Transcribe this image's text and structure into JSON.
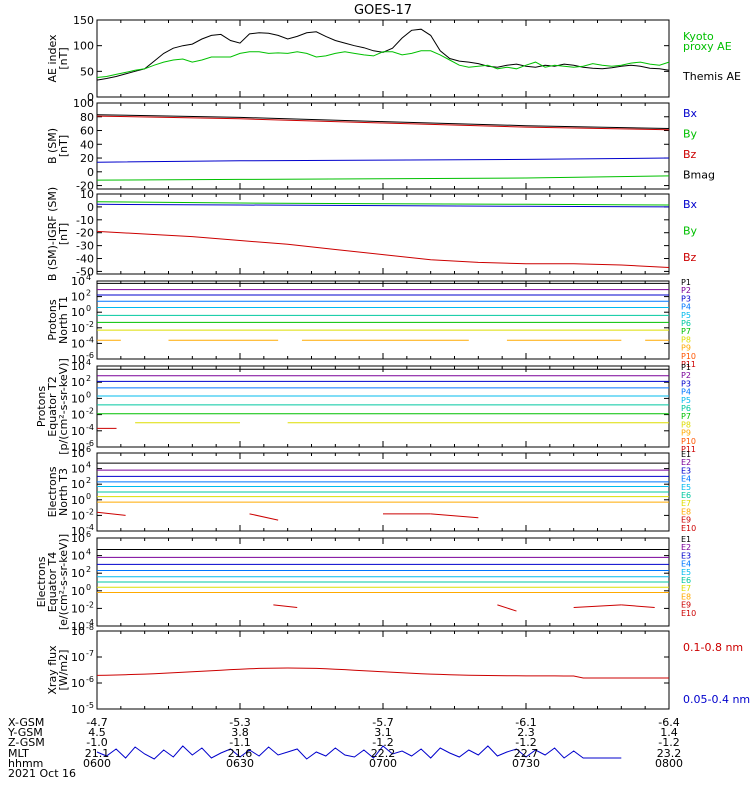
{
  "title": "GOES-17",
  "chart_data": [
    {
      "type": "line",
      "panel": "ae",
      "ylabel": [
        "AE index",
        "[nT]"
      ],
      "ylim": [
        0,
        150
      ],
      "yticks": [
        "0",
        "50",
        "100",
        "150"
      ],
      "legend": [
        {
          "text": "Kyoto",
          "color": "#00c000"
        },
        {
          "text": "proxy AE",
          "color": "#00c000"
        },
        {
          "text": "Themis AE",
          "color": "#000000"
        }
      ],
      "series": [
        {
          "name": "Themis AE",
          "color": "#000000",
          "x": [
            0,
            2,
            4,
            6,
            8,
            10,
            12,
            14,
            16,
            18,
            20,
            22,
            24,
            26,
            28,
            30,
            32,
            34,
            36,
            38,
            40,
            42,
            44,
            46,
            48,
            50,
            52,
            54,
            56,
            58,
            60,
            62,
            64,
            66,
            68,
            70,
            72,
            74,
            76,
            78,
            80,
            82,
            84,
            86,
            88,
            90,
            92,
            94,
            96,
            98,
            100,
            102,
            104,
            106,
            108,
            110,
            112,
            114,
            116,
            118,
            120
          ],
          "y": [
            33,
            36,
            40,
            45,
            50,
            55,
            70,
            85,
            95,
            100,
            103,
            113,
            120,
            122,
            110,
            105,
            123,
            125,
            124,
            120,
            113,
            118,
            125,
            127,
            118,
            110,
            105,
            100,
            96,
            90,
            87,
            95,
            115,
            130,
            132,
            120,
            90,
            75,
            70,
            68,
            65,
            60,
            58,
            62,
            64,
            60,
            58,
            62,
            60,
            64,
            62,
            58,
            56,
            55,
            57,
            60,
            62,
            60,
            56,
            55,
            52
          ]
        },
        {
          "name": "Kyoto proxy AE",
          "color": "#00c000",
          "x": [
            0,
            2,
            4,
            6,
            8,
            10,
            12,
            14,
            16,
            18,
            20,
            22,
            24,
            26,
            28,
            30,
            32,
            34,
            36,
            38,
            40,
            42,
            44,
            46,
            48,
            50,
            52,
            54,
            56,
            58,
            60,
            62,
            64,
            66,
            68,
            70,
            72,
            74,
            76,
            78,
            80,
            82,
            84,
            86,
            88,
            90,
            92,
            94,
            96,
            98,
            100,
            102,
            104,
            106,
            108,
            110,
            112,
            114,
            116,
            118,
            120
          ],
          "y": [
            38,
            40,
            44,
            48,
            52,
            55,
            62,
            68,
            72,
            74,
            68,
            72,
            78,
            78,
            78,
            85,
            88,
            88,
            85,
            86,
            85,
            88,
            85,
            78,
            80,
            85,
            88,
            85,
            82,
            80,
            88,
            88,
            82,
            85,
            90,
            90,
            82,
            72,
            62,
            58,
            60,
            62,
            55,
            58,
            55,
            62,
            68,
            58,
            62,
            60,
            58,
            60,
            65,
            62,
            60,
            62,
            66,
            68,
            64,
            62,
            68
          ]
        }
      ]
    },
    {
      "type": "line",
      "panel": "bsm",
      "ylabel": [
        "B (SM)",
        "[nT]"
      ],
      "ylim": [
        -25,
        100
      ],
      "yticks": [
        "-20",
        "0",
        "20",
        "40",
        "60",
        "80",
        "100"
      ],
      "legend": [
        {
          "text": "Bx",
          "color": "#0000cc"
        },
        {
          "text": "By",
          "color": "#00c000"
        },
        {
          "text": "Bz",
          "color": "#cc0000"
        },
        {
          "text": "Bmag",
          "color": "#000000"
        }
      ],
      "series": [
        {
          "name": "Bx",
          "color": "#0000cc",
          "x": [
            0,
            30,
            60,
            90,
            120
          ],
          "y": [
            14,
            16,
            17,
            18,
            20
          ]
        },
        {
          "name": "By",
          "color": "#00c000",
          "x": [
            0,
            30,
            60,
            90,
            120
          ],
          "y": [
            -12,
            -11,
            -10,
            -9,
            -6
          ]
        },
        {
          "name": "Bz",
          "color": "#cc0000",
          "x": [
            0,
            30,
            60,
            90,
            120
          ],
          "y": [
            81,
            77,
            71,
            65,
            61
          ]
        },
        {
          "name": "Bmag",
          "color": "#000000",
          "x": [
            0,
            30,
            60,
            90,
            120
          ],
          "y": [
            83,
            79,
            73,
            67,
            63
          ]
        }
      ]
    },
    {
      "type": "line",
      "panel": "bigrf",
      "ylabel": [
        "B (SM)-IGRF (SM)",
        "[nT]"
      ],
      "ylim": [
        -52,
        10
      ],
      "yticks": [
        "-50",
        "-40",
        "-30",
        "-20",
        "-10",
        "0",
        "10"
      ],
      "legend": [
        {
          "text": "Bx",
          "color": "#0000cc"
        },
        {
          "text": "By",
          "color": "#00c000"
        },
        {
          "text": "Bz",
          "color": "#cc0000"
        }
      ],
      "series": [
        {
          "name": "Bx",
          "color": "#0000cc",
          "x": [
            0,
            30,
            60,
            90,
            120
          ],
          "y": [
            2,
            1.5,
            1,
            0.5,
            0
          ]
        },
        {
          "name": "By",
          "color": "#00c000",
          "x": [
            0,
            30,
            60,
            90,
            120
          ],
          "y": [
            4,
            3,
            2.5,
            2,
            1.5
          ]
        },
        {
          "name": "Bz",
          "color": "#cc0000",
          "x": [
            0,
            10,
            20,
            30,
            40,
            50,
            60,
            70,
            80,
            90,
            100,
            110,
            120
          ],
          "y": [
            -19,
            -21,
            -23,
            -26,
            -29,
            -33,
            -37,
            -41,
            -43,
            -44,
            -44,
            -45,
            -47
          ]
        }
      ]
    },
    {
      "type": "line",
      "panel": "pn",
      "ylabel": [
        "Protons",
        "North T1"
      ],
      "log": true,
      "ylim": [
        -6,
        4
      ],
      "yticks": [
        {
          "b": "10",
          "e": "4"
        },
        {
          "b": "10",
          "e": "2"
        },
        {
          "b": "10",
          "e": "0"
        },
        {
          "b": "10",
          "e": "-2"
        },
        {
          "b": "10",
          "e": "-4"
        },
        {
          "b": "10",
          "e": "-6"
        }
      ],
      "legend": [
        "P1",
        "P2",
        "P3",
        "P4",
        "P5",
        "P6",
        "P7",
        "P8",
        "P9",
        "P10",
        "P11"
      ],
      "levels": [
        3.7,
        2.9,
        2.2,
        1.4,
        0.6,
        -0.4,
        -1.3,
        -2.3,
        -3.6
      ],
      "gaps": {
        "8": [
          [
            5,
            15
          ],
          [
            38,
            43
          ],
          [
            78,
            86
          ],
          [
            110,
            115
          ]
        ]
      }
    },
    {
      "type": "line",
      "panel": "pe",
      "ylabel": [
        "Protons",
        "Equator T2",
        "[p/(cm²-s-sr-keV)]"
      ],
      "log": true,
      "ylim": [
        -6,
        4
      ],
      "yticks": [
        {
          "b": "10",
          "e": "4"
        },
        {
          "b": "10",
          "e": "2"
        },
        {
          "b": "10",
          "e": "0"
        },
        {
          "b": "10",
          "e": "-2"
        },
        {
          "b": "10",
          "e": "-4"
        },
        {
          "b": "10",
          "e": "-6"
        }
      ],
      "legend": [
        "P1",
        "P2",
        "P3",
        "P4",
        "P5",
        "P6",
        "P7",
        "P8",
        "P9",
        "P10",
        "P11"
      ],
      "levels": [
        3.6,
        2.8,
        2.1,
        1.3,
        0.3,
        -0.8,
        -1.9,
        -3.0,
        -3.8
      ],
      "gaps": {
        "7": [
          [
            0,
            8
          ],
          [
            30,
            40
          ]
        ],
        "8": [
          [
            0,
            120
          ]
        ]
      },
      "extra": {
        "level": -3.7,
        "x0": 0,
        "x1": 2
      }
    },
    {
      "type": "line",
      "panel": "en",
      "ylabel": [
        "Electrons",
        "North T3"
      ],
      "log": true,
      "ylim": [
        -4,
        6
      ],
      "yticks": [
        {
          "b": "10",
          "e": "6"
        },
        {
          "b": "10",
          "e": "4"
        },
        {
          "b": "10",
          "e": "2"
        },
        {
          "b": "10",
          "e": "0"
        },
        {
          "b": "10",
          "e": "-2"
        },
        {
          "b": "10",
          "e": "-4"
        }
      ],
      "legend": [
        "E1",
        "E2",
        "E3",
        "E4",
        "E5",
        "E6",
        "E7",
        "E8",
        "E9",
        "E10"
      ],
      "levels": [
        4.7,
        3.8,
        3.0,
        2.3,
        1.7,
        1.0,
        0.4,
        -0.3
      ],
      "segments": [
        [
          0,
          -1.6,
          6,
          -2.0
        ],
        [
          32,
          -1.8,
          38,
          -2.6
        ],
        [
          60,
          -1.8,
          70,
          -1.8
        ],
        [
          70,
          -1.8,
          80,
          -2.3
        ]
      ]
    },
    {
      "type": "line",
      "panel": "ee",
      "ylabel": [
        "Electrons",
        "Equator T4",
        "[e/(cm²-s-sr-keV)]"
      ],
      "log": true,
      "ylim": [
        -4,
        6
      ],
      "yticks": [
        {
          "b": "10",
          "e": "6"
        },
        {
          "b": "10",
          "e": "4"
        },
        {
          "b": "10",
          "e": "2"
        },
        {
          "b": "10",
          "e": "0"
        },
        {
          "b": "10",
          "e": "-2"
        },
        {
          "b": "10",
          "e": "-4"
        }
      ],
      "legend": [
        "E1",
        "E2",
        "E3",
        "E4",
        "E5",
        "E6",
        "E7",
        "E8",
        "E9",
        "E10"
      ],
      "levels": [
        4.7,
        3.8,
        3.0,
        2.3,
        1.6,
        1.0,
        0.4,
        -0.2
      ],
      "segments": [
        [
          37,
          -1.6,
          42,
          -1.9
        ],
        [
          84,
          -1.6,
          88,
          -2.3
        ],
        [
          100,
          -1.9,
          110,
          -1.6
        ],
        [
          110,
          -1.6,
          117,
          -1.9
        ]
      ]
    },
    {
      "type": "line",
      "panel": "xr",
      "ylabel": [
        "Xray flux",
        "[W/m2]"
      ],
      "log": true,
      "ylim": [
        -9.2,
        -7.8
      ],
      "yticks": [
        {
          "b": "10",
          "e": "-8"
        },
        {
          "b": "10",
          "e": "-7"
        },
        {
          "b": "10",
          "e": "-6"
        },
        {
          "b": "10",
          "e": "-5"
        }
      ],
      "legend": [
        {
          "text": "0.1-0.8 nm",
          "color": "#cc0000"
        },
        {
          "text": "0.05-0.4 nm",
          "color": "#0000cc"
        }
      ]
    }
  ],
  "xaxis": {
    "row_labels": [
      "X-GSM",
      "Y-GSM",
      "Z-GSM",
      "MLT",
      "hhmm",
      "2021 Oct 16"
    ],
    "columns": [
      {
        "x": 0,
        "vals": [
          "-4.7",
          "4.5",
          "-1.0",
          "21.1",
          "0600"
        ]
      },
      {
        "x": 30,
        "vals": [
          "-5.3",
          "3.8",
          "-1.1",
          "21.6",
          "0630"
        ]
      },
      {
        "x": 60,
        "vals": [
          "-5.7",
          "3.1",
          "-1.2",
          "22.2",
          "0700"
        ]
      },
      {
        "x": 90,
        "vals": [
          "-6.1",
          "2.3",
          "-1.2",
          "22.7",
          "0730"
        ]
      },
      {
        "x": 120,
        "vals": [
          "-6.4",
          "1.4",
          "-1.2",
          "23.2",
          "0800"
        ]
      }
    ]
  }
}
